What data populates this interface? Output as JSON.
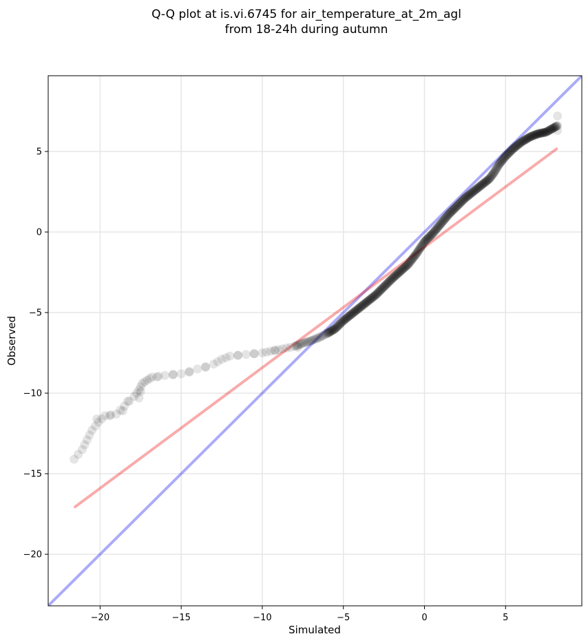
{
  "chart_data": {
    "type": "scatter",
    "title_line1": "Q-Q plot at is.vi.6745 for air_temperature_at_2m_agl",
    "title_line2": "from 18-24h during autumn",
    "xlabel": "Simulated",
    "ylabel": "Observed",
    "xlim": [
      -23.2,
      9.7
    ],
    "ylim": [
      -23.2,
      9.7
    ],
    "xticks": [
      -20,
      -15,
      -10,
      -5,
      0,
      5
    ],
    "yticks": [
      -20,
      -15,
      -10,
      -5,
      0,
      5
    ],
    "xtick_labels": [
      "−20",
      "−15",
      "−10",
      "−5",
      "0",
      "5"
    ],
    "ytick_labels": [
      "−20",
      "−15",
      "−10",
      "−5",
      "0",
      "5"
    ],
    "grid": true,
    "colors": {
      "points": "#000000",
      "identity_line": "#0000ee",
      "fit_line": "#ee0000",
      "grid": "#e6e6e6"
    },
    "identity_line": {
      "x": [
        -23.2,
        9.7
      ],
      "y": [
        -23.2,
        9.7
      ]
    },
    "fit_line": {
      "x": [
        -21.6,
        8.2
      ],
      "y": [
        -17.1,
        5.2
      ]
    },
    "quantile_curve": {
      "x": [
        -21.6,
        -21.1,
        -20.8,
        -20.5,
        -20.1,
        -19.7,
        -19.0,
        -18.5,
        -17.9,
        -17.6,
        -17.4,
        -17.1,
        -16.8,
        -16.0,
        -15.0,
        -14.0,
        -13.0,
        -12.5,
        -12.0,
        -11.0,
        -10.0,
        -9.5,
        -9.0,
        -8.5,
        -8.0,
        -7.5,
        -7.0,
        -6.5,
        -6.0,
        -5.5,
        -5.0,
        -4.5,
        -4.0,
        -3.5,
        -3.0,
        -2.5,
        -2.0,
        -1.5,
        -1.0,
        -0.5,
        0.0,
        0.5,
        1.0,
        1.5,
        2.0,
        2.5,
        3.0,
        3.5,
        4.0,
        4.3,
        4.6,
        5.0,
        5.5,
        6.0,
        6.5,
        7.0,
        7.5,
        8.2
      ],
      "y": [
        -14.1,
        -13.5,
        -12.9,
        -12.3,
        -11.8,
        -11.4,
        -11.3,
        -10.8,
        -10.2,
        -9.8,
        -9.4,
        -9.2,
        -9.0,
        -8.9,
        -8.8,
        -8.5,
        -8.2,
        -7.9,
        -7.7,
        -7.6,
        -7.5,
        -7.4,
        -7.3,
        -7.2,
        -7.1,
        -6.9,
        -6.75,
        -6.55,
        -6.3,
        -6.0,
        -5.5,
        -5.1,
        -4.7,
        -4.3,
        -3.9,
        -3.4,
        -2.9,
        -2.45,
        -2.0,
        -1.35,
        -0.6,
        -0.1,
        0.5,
        1.1,
        1.6,
        2.1,
        2.5,
        2.9,
        3.3,
        3.7,
        4.2,
        4.7,
        5.2,
        5.6,
        5.9,
        6.1,
        6.2,
        6.6
      ]
    },
    "outlier_points": {
      "x": [
        -18.3,
        -18.6,
        -19.4,
        -20.2,
        -17.6,
        -17.5,
        -16.5,
        -15.5,
        -14.5,
        -13.5,
        -11.5,
        -10.5,
        -9.2,
        -7.8,
        8.2,
        8.2,
        8.2
      ],
      "y": [
        -10.5,
        -11.1,
        -11.4,
        -11.6,
        -10.3,
        -9.9,
        -9.0,
        -8.85,
        -8.7,
        -8.4,
        -7.65,
        -7.55,
        -7.35,
        -7.15,
        7.2,
        6.6,
        6.3
      ]
    }
  }
}
